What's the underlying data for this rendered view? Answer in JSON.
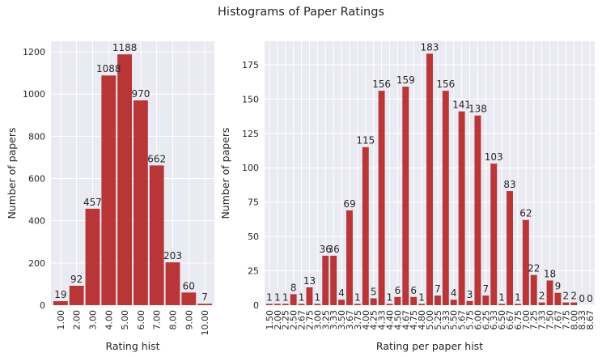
{
  "suptitle": "Histograms of Paper Ratings",
  "chart_data": [
    {
      "type": "bar",
      "xlabel": "Rating hist",
      "ylabel": "Number of papers",
      "ylim": [
        0,
        1250
      ],
      "yticks": [
        0,
        200,
        400,
        600,
        800,
        1000,
        1200
      ],
      "grid": true,
      "bar_color": "#b22222",
      "categories": [
        "1.00",
        "2.00",
        "3.00",
        "4.00",
        "5.00",
        "6.00",
        "7.00",
        "8.00",
        "9.00",
        "10.00"
      ],
      "values": [
        19,
        92,
        457,
        1088,
        1188,
        970,
        662,
        203,
        60,
        7
      ]
    },
    {
      "type": "bar",
      "xlabel": "Rating per paper hist",
      "ylabel": "Number of papers",
      "ylim": [
        0,
        192
      ],
      "yticks": [
        0,
        25,
        50,
        75,
        100,
        125,
        150,
        175
      ],
      "grid": true,
      "bar_color": "#b22222",
      "categories": [
        "1.50",
        "2.00",
        "2.25",
        "2.50",
        "2.67",
        "2.75",
        "3.00",
        "3.25",
        "3.33",
        "3.50",
        "3.67",
        "3.75",
        "4.00",
        "4.25",
        "4.33",
        "4.40",
        "4.50",
        "4.67",
        "4.75",
        "4.80",
        "5.00",
        "5.25",
        "5.33",
        "5.50",
        "5.67",
        "5.75",
        "6.00",
        "6.25",
        "6.33",
        "6.50",
        "6.67",
        "6.75",
        "7.00",
        "7.25",
        "7.33",
        "7.50",
        "7.67",
        "7.75",
        "8.00",
        "8.33",
        "8.67"
      ],
      "values": [
        1,
        1,
        1,
        8,
        1,
        13,
        1,
        36,
        36,
        4,
        69,
        1,
        115,
        5,
        156,
        1,
        6,
        159,
        6,
        1,
        183,
        7,
        156,
        4,
        141,
        3,
        138,
        7,
        103,
        1,
        83,
        1,
        62,
        22,
        2,
        18,
        9,
        2,
        2,
        0,
        0
      ]
    }
  ]
}
